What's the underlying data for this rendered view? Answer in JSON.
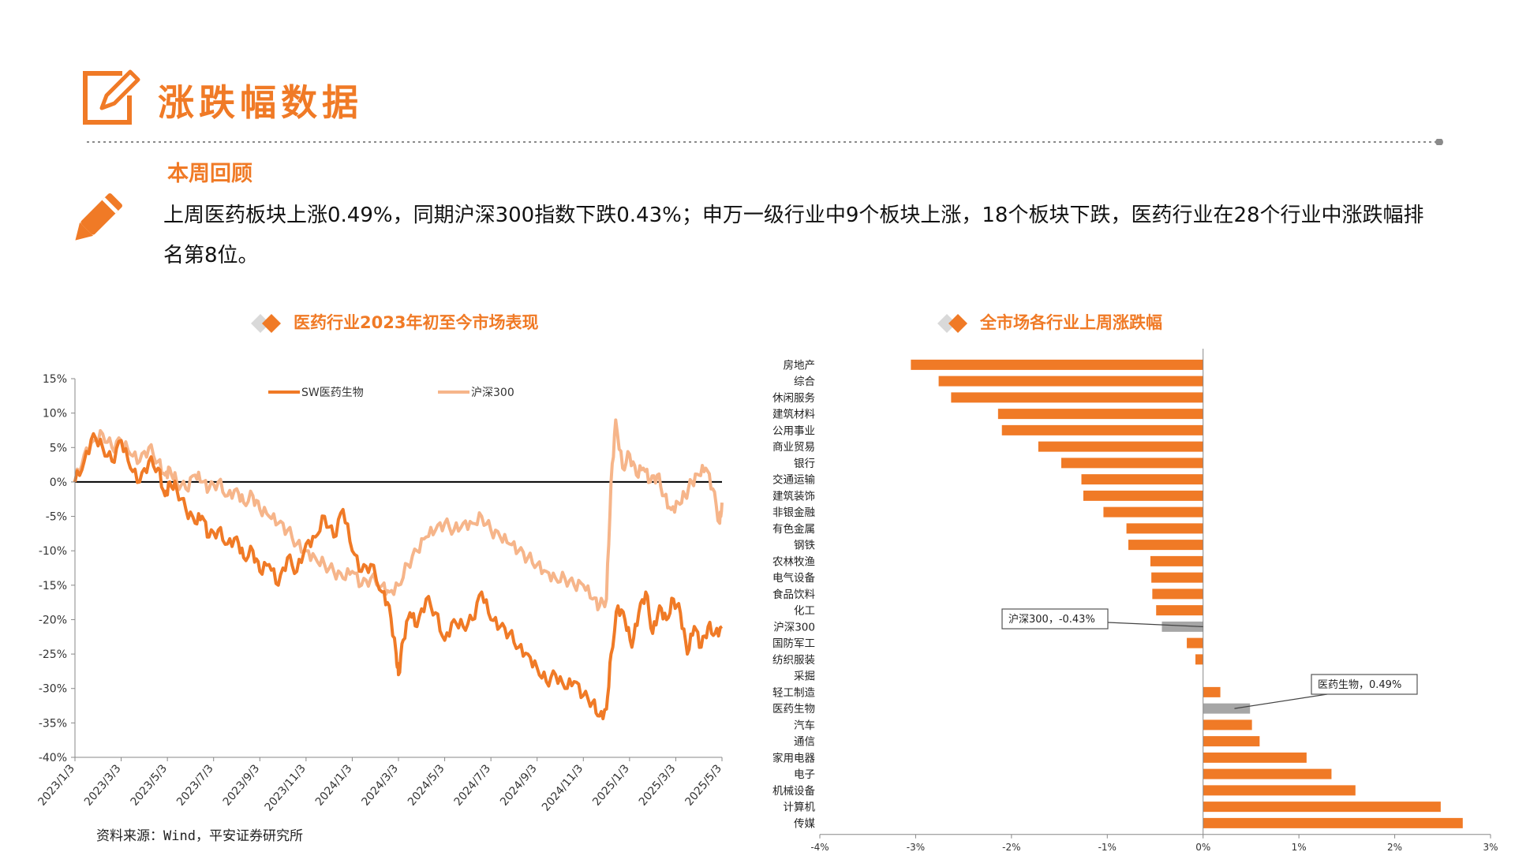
{
  "header": {
    "title": "涨跌幅数据"
  },
  "review": {
    "heading": "本周回顾",
    "summary": "上周医药板块上涨0.49%，同期沪深300指数下跌0.43%；申万一级行业中9个板块上涨，18个板块下跌，医药行业在28个行业中涨跌幅排名第8位。"
  },
  "source_note": "资料来源：Wind，平安证券研究所",
  "colors": {
    "accent": "#f07a26",
    "accent_light": "#f6b58a",
    "highlight": "#a6a6a6"
  },
  "chart_data": [
    {
      "type": "line",
      "title": "医药行业2023年初至今市场表现",
      "ylim": [
        -40,
        15
      ],
      "yticks": [
        "15%",
        "10%",
        "5%",
        "0%",
        "-5%",
        "-10%",
        "-15%",
        "-20%",
        "-25%",
        "-30%",
        "-35%",
        "-40%"
      ],
      "x_tick_labels": [
        "2023/1/3",
        "2023/3/3",
        "2023/5/3",
        "2023/7/3",
        "2023/9/3",
        "2023/11/3",
        "2024/1/3",
        "2024/3/3",
        "2024/5/3",
        "2024/7/3",
        "2024/9/3",
        "2024/11/3",
        "2025/1/3",
        "2025/3/3",
        "2025/5/3"
      ],
      "x_range_months": [
        0,
        28
      ],
      "series": [
        {
          "name": "SW医药生物",
          "color": "#f07a26",
          "points": [
            [
              0,
              0
            ],
            [
              0.4,
              3
            ],
            [
              0.8,
              7
            ],
            [
              1.2,
              5
            ],
            [
              1.6,
              3
            ],
            [
              2.0,
              6
            ],
            [
              2.4,
              2
            ],
            [
              2.8,
              0
            ],
            [
              3.2,
              3
            ],
            [
              3.6,
              2
            ],
            [
              3.9,
              -2
            ],
            [
              4.1,
              0
            ],
            [
              4.4,
              -1
            ],
            [
              4.8,
              -4
            ],
            [
              5.2,
              -6
            ],
            [
              5.5,
              -5
            ],
            [
              5.8,
              -8
            ],
            [
              6.2,
              -7
            ],
            [
              6.6,
              -9
            ],
            [
              7.0,
              -8
            ],
            [
              7.3,
              -11
            ],
            [
              7.7,
              -10
            ],
            [
              8.0,
              -13
            ],
            [
              8.4,
              -12
            ],
            [
              8.8,
              -15
            ],
            [
              9.2,
              -11
            ],
            [
              9.6,
              -13
            ],
            [
              10.0,
              -9
            ],
            [
              10.4,
              -8
            ],
            [
              10.8,
              -5
            ],
            [
              11.2,
              -8
            ],
            [
              11.6,
              -4
            ],
            [
              12.0,
              -10
            ],
            [
              12.4,
              -13
            ],
            [
              12.8,
              -12
            ],
            [
              13.3,
              -16
            ],
            [
              13.6,
              -18
            ],
            [
              13.9,
              -25
            ],
            [
              14.0,
              -28
            ],
            [
              14.2,
              -23
            ],
            [
              14.5,
              -19
            ],
            [
              14.8,
              -21
            ],
            [
              15.2,
              -17
            ],
            [
              15.6,
              -19
            ],
            [
              16.0,
              -23
            ],
            [
              16.4,
              -20
            ],
            [
              16.8,
              -21
            ],
            [
              17.2,
              -20
            ],
            [
              17.6,
              -16
            ],
            [
              18.0,
              -20
            ],
            [
              18.4,
              -21
            ],
            [
              18.8,
              -22
            ],
            [
              19.2,
              -24
            ],
            [
              19.6,
              -25
            ],
            [
              20.0,
              -27
            ],
            [
              20.4,
              -29
            ],
            [
              20.8,
              -28
            ],
            [
              21.2,
              -30
            ],
            [
              21.6,
              -29
            ],
            [
              22.0,
              -31
            ],
            [
              22.4,
              -32
            ],
            [
              22.7,
              -34
            ],
            [
              23.0,
              -33
            ],
            [
              23.2,
              -25
            ],
            [
              23.5,
              -18
            ],
            [
              23.8,
              -20
            ],
            [
              24.1,
              -24
            ],
            [
              24.4,
              -19
            ],
            [
              24.7,
              -16
            ],
            [
              25.0,
              -22
            ],
            [
              25.3,
              -18
            ],
            [
              25.6,
              -20
            ],
            [
              25.9,
              -17
            ],
            [
              26.2,
              -19
            ],
            [
              26.5,
              -25
            ],
            [
              26.8,
              -21
            ],
            [
              27.1,
              -24
            ],
            [
              27.4,
              -21
            ],
            [
              27.7,
              -22
            ],
            [
              28.0,
              -21
            ]
          ]
        },
        {
          "name": "沪深300",
          "color": "#f6b58a",
          "points": [
            [
              0,
              0
            ],
            [
              0.4,
              4
            ],
            [
              0.8,
              6
            ],
            [
              1.2,
              7
            ],
            [
              1.6,
              5
            ],
            [
              2.0,
              6
            ],
            [
              2.4,
              4
            ],
            [
              2.8,
              3
            ],
            [
              3.2,
              5
            ],
            [
              3.6,
              3
            ],
            [
              3.9,
              1
            ],
            [
              4.1,
              2
            ],
            [
              4.4,
              0
            ],
            [
              4.8,
              -1
            ],
            [
              5.2,
              1
            ],
            [
              5.5,
              0
            ],
            [
              5.8,
              -1
            ],
            [
              6.2,
              0
            ],
            [
              6.6,
              -2
            ],
            [
              7.0,
              -1
            ],
            [
              7.3,
              -3
            ],
            [
              7.7,
              -2
            ],
            [
              8.0,
              -4
            ],
            [
              8.4,
              -5
            ],
            [
              8.8,
              -6
            ],
            [
              9.2,
              -7
            ],
            [
              9.6,
              -9
            ],
            [
              10.0,
              -10
            ],
            [
              10.4,
              -11
            ],
            [
              10.8,
              -12
            ],
            [
              11.2,
              -13
            ],
            [
              11.6,
              -14
            ],
            [
              12.0,
              -13
            ],
            [
              12.4,
              -15
            ],
            [
              12.8,
              -14
            ],
            [
              13.3,
              -15
            ],
            [
              13.6,
              -16
            ],
            [
              14.0,
              -15
            ],
            [
              14.4,
              -12
            ],
            [
              14.8,
              -10
            ],
            [
              15.2,
              -8
            ],
            [
              15.6,
              -7
            ],
            [
              16.0,
              -6
            ],
            [
              16.4,
              -7
            ],
            [
              16.8,
              -6
            ],
            [
              17.2,
              -6
            ],
            [
              17.6,
              -5
            ],
            [
              18.0,
              -7
            ],
            [
              18.4,
              -8
            ],
            [
              18.8,
              -9
            ],
            [
              19.2,
              -10
            ],
            [
              19.6,
              -11
            ],
            [
              20.0,
              -12
            ],
            [
              20.4,
              -13
            ],
            [
              20.8,
              -14
            ],
            [
              21.2,
              -14
            ],
            [
              21.6,
              -15
            ],
            [
              22.0,
              -15
            ],
            [
              22.4,
              -17
            ],
            [
              22.7,
              -18
            ],
            [
              23.0,
              -17
            ],
            [
              23.2,
              0
            ],
            [
              23.4,
              9
            ],
            [
              23.7,
              2
            ],
            [
              24.0,
              4
            ],
            [
              24.3,
              1
            ],
            [
              24.6,
              2
            ],
            [
              24.9,
              0
            ],
            [
              25.2,
              1
            ],
            [
              25.5,
              -2
            ],
            [
              25.8,
              -4
            ],
            [
              26.1,
              -3
            ],
            [
              26.4,
              -2
            ],
            [
              26.7,
              0
            ],
            [
              27.0,
              1
            ],
            [
              27.3,
              2
            ],
            [
              27.6,
              -1
            ],
            [
              27.9,
              -6
            ],
            [
              28.0,
              -3
            ]
          ]
        }
      ]
    },
    {
      "type": "bar",
      "orientation": "horizontal",
      "title": "全市场各行业上周涨跌幅",
      "xlim": [
        -4,
        3
      ],
      "xticks": [
        "-4%",
        "-3%",
        "-2%",
        "-1%",
        "0%",
        "1%",
        "2%",
        "3%"
      ],
      "categories": [
        "房地产",
        "综合",
        "休闲服务",
        "建筑材料",
        "公用事业",
        "商业贸易",
        "银行",
        "交通运输",
        "建筑装饰",
        "非银金融",
        "有色金属",
        "钢铁",
        "农林牧渔",
        "电气设备",
        "食品饮料",
        "化工",
        "沪深300",
        "国防军工",
        "纺织服装",
        "采掘",
        "轻工制造",
        "医药生物",
        "汽车",
        "通信",
        "家用电器",
        "电子",
        "机械设备",
        "计算机",
        "传媒"
      ],
      "values": [
        -3.05,
        -2.76,
        -2.63,
        -2.14,
        -2.1,
        -1.72,
        -1.48,
        -1.27,
        -1.25,
        -1.04,
        -0.8,
        -0.78,
        -0.55,
        -0.54,
        -0.53,
        -0.49,
        -0.43,
        -0.17,
        -0.08,
        0,
        0.18,
        0.49,
        0.51,
        0.59,
        1.08,
        1.34,
        1.59,
        2.48,
        2.71
      ],
      "highlighted": [
        "沪深300",
        "医药生物"
      ],
      "annotations": [
        {
          "category": "沪深300",
          "text": "沪深300，-0.43%"
        },
        {
          "category": "医药生物",
          "text": "医药生物，0.49%"
        }
      ]
    }
  ]
}
